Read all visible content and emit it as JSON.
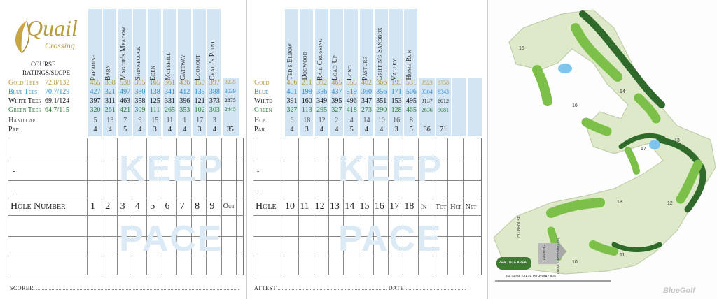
{
  "logo": {
    "name": "Quail",
    "sub": "Crossing"
  },
  "front": {
    "course_label_1": "COURSE",
    "course_label_2": "RATINGS/SLOPE",
    "hole_names": [
      "Paradise",
      "Barn",
      "Maggie's Meadow",
      "Shinnecock",
      "Eden",
      "Molehill",
      "Gateway",
      "Lookout",
      "Craig's Point"
    ],
    "tees": [
      {
        "label": "Gold Tees",
        "rating": "72.8/132",
        "color": "#b89b3d",
        "yards": [
          "455",
          "338",
          "538",
          "395",
          "165",
          "361",
          "436",
          "150",
          "397"
        ],
        "out": "3235"
      },
      {
        "label": "Blue Tees",
        "rating": "70.7/129",
        "color": "#2f8fd0",
        "yards": [
          "427",
          "321",
          "497",
          "380",
          "138",
          "341",
          "412",
          "135",
          "388"
        ],
        "out": "3039"
      },
      {
        "label": "White Tees",
        "rating": "69.1/124",
        "color": "#111111",
        "yards": [
          "397",
          "311",
          "463",
          "358",
          "125",
          "331",
          "396",
          "121",
          "373"
        ],
        "out": "2875"
      },
      {
        "label": "Green Tees",
        "rating": "64.7/115",
        "color": "#2e7d3a",
        "yards": [
          "320",
          "261",
          "421",
          "309",
          "111",
          "265",
          "353",
          "102",
          "303"
        ],
        "out": "2445"
      }
    ],
    "handicap_label": "Handicap",
    "handicap": [
      "5",
      "13",
      "7",
      "9",
      "15",
      "11",
      "1",
      "17",
      "3"
    ],
    "par_label": "Par",
    "par": [
      "4",
      "4",
      "5",
      "4",
      "3",
      "4",
      "4",
      "3",
      "4"
    ],
    "par_out": "35",
    "hole_label": "Hole Number",
    "holes": [
      "1",
      "2",
      "3",
      "4",
      "5",
      "6",
      "7",
      "8",
      "9"
    ],
    "out_label": "Out",
    "watermark1": "KEEP",
    "watermark2": "PACE",
    "scorer": "SCORER"
  },
  "back": {
    "hole_names": [
      "Ted's Elbow",
      "Dogwood",
      "Rail Crossing",
      "Load Up",
      "Long",
      "Pasture",
      "Griffin's Sandbox",
      "Valley",
      "Home Run"
    ],
    "tees": [
      {
        "label": "Gold",
        "color": "#b89b3d",
        "yards": [
          "406",
          "211",
          "392",
          "465",
          "555",
          "402",
          "366",
          "195",
          "531"
        ],
        "in": "3523",
        "tot": "6758"
      },
      {
        "label": "Blue",
        "color": "#2f8fd0",
        "yards": [
          "401",
          "198",
          "356",
          "437",
          "519",
          "360",
          "356",
          "171",
          "506"
        ],
        "in": "3304",
        "tot": "6343"
      },
      {
        "label": "White",
        "color": "#111111",
        "yards": [
          "391",
          "160",
          "349",
          "395",
          "496",
          "347",
          "351",
          "153",
          "495"
        ],
        "in": "3137",
        "tot": "6012"
      },
      {
        "label": "Green",
        "color": "#2e7d3a",
        "yards": [
          "327",
          "113",
          "295",
          "327",
          "418",
          "273",
          "290",
          "128",
          "465"
        ],
        "in": "2636",
        "tot": "5081"
      }
    ],
    "handicap_label": "Hcp.",
    "handicap": [
      "6",
      "18",
      "12",
      "2",
      "4",
      "14",
      "10",
      "16",
      "8"
    ],
    "par_label": "Par",
    "par": [
      "4",
      "3",
      "4",
      "4",
      "5",
      "4",
      "4",
      "3",
      "5"
    ],
    "par_in": "36",
    "par_tot": "71",
    "hole_label": "Hole",
    "holes": [
      "10",
      "11",
      "12",
      "13",
      "14",
      "15",
      "16",
      "17",
      "18"
    ],
    "in_label": "In",
    "tot_label": "Tot",
    "hcp_label": "Hcp",
    "net_label": "Net",
    "watermark1": "KEEP",
    "watermark2": "PACE",
    "attest": "ATTEST",
    "date": "DATE"
  },
  "map": {
    "hole_numbers": [
      "15",
      "14",
      "16",
      "17",
      "13",
      "12",
      "18",
      "11",
      "10"
    ],
    "practice": "PRACTICE AREA",
    "clubhouse": "CLUBHOUSE",
    "parking": "PARKING",
    "drive": "QUAIL CROSSING DR.",
    "highway": "INDIANA STATE HIGHWAY #261",
    "brand": "BlueGolf"
  }
}
